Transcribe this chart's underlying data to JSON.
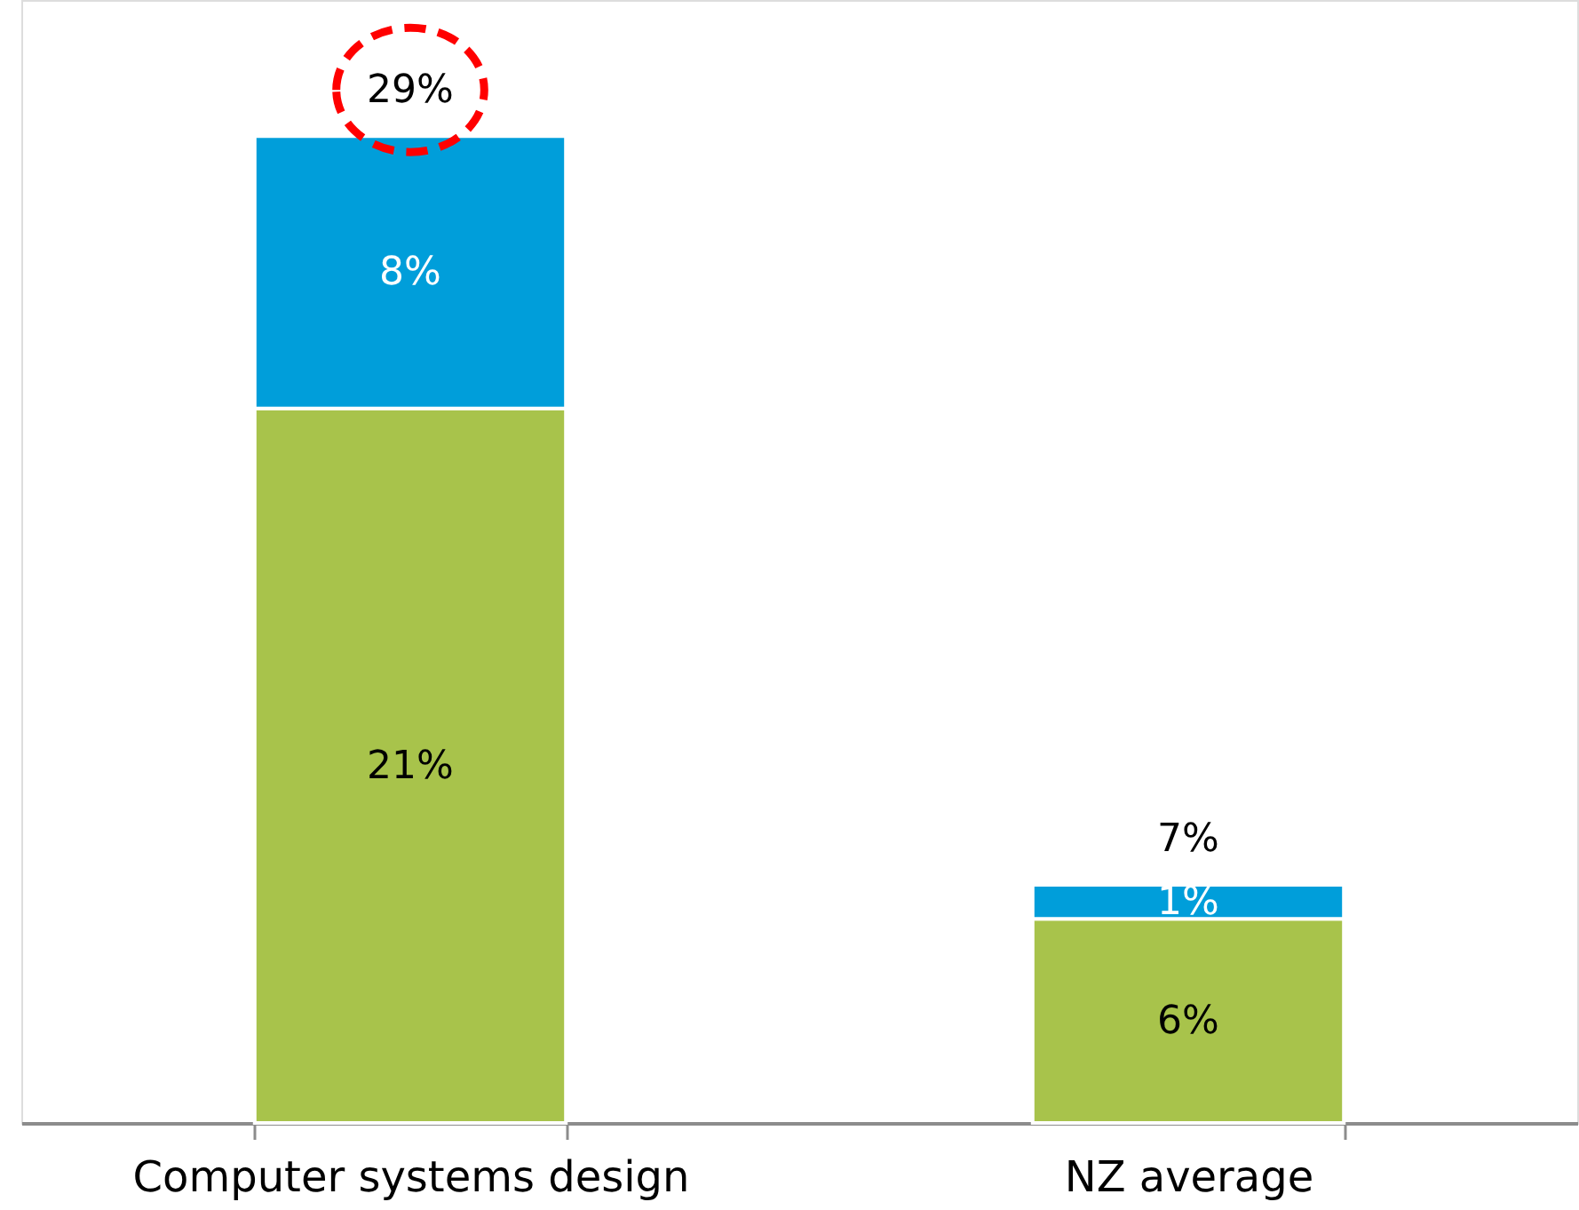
{
  "chart_data": {
    "type": "bar",
    "stacked": true,
    "categories": [
      "Computer systems design",
      "NZ average"
    ],
    "series": [
      {
        "color": "#a8c34b",
        "values": [
          21,
          6
        ],
        "value_labels": [
          "21%",
          "6%"
        ]
      },
      {
        "color": "#009eda",
        "values": [
          8,
          1
        ],
        "value_labels": [
          "8%",
          "1%"
        ]
      }
    ],
    "totals": [
      "29%",
      "7%"
    ],
    "ylim": [
      0,
      33
    ],
    "tick_labels": "x"
  }
}
